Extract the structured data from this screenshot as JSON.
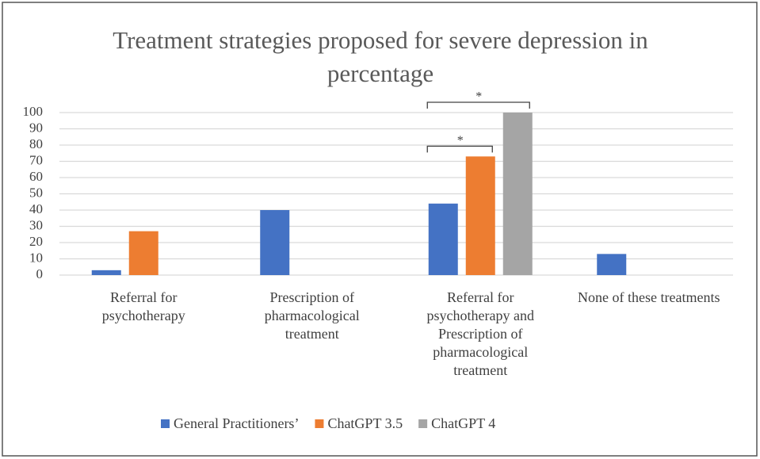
{
  "chart_data": {
    "type": "bar",
    "title": "Treatment strategies proposed for severe depression in percentage",
    "categories": [
      "Referral for psychotherapy",
      "Prescription of pharmacological treatment",
      "Referral for psychotherapy and Prescription of pharmacological treatment",
      "None of these treatments"
    ],
    "series": [
      {
        "name": "General Practitioners’",
        "color": "#4472c4",
        "values": [
          3,
          40,
          44,
          13
        ]
      },
      {
        "name": "ChatGPT 3.5",
        "color": "#ed7d31",
        "values": [
          27,
          0,
          73,
          0
        ]
      },
      {
        "name": "ChatGPT 4",
        "color": "#a5a5a5",
        "values": [
          0,
          0,
          100,
          0
        ]
      }
    ],
    "annotations": [
      "*",
      "*"
    ],
    "ylim": [
      0,
      100
    ],
    "yticks": [
      0,
      10,
      20,
      30,
      40,
      50,
      60,
      70,
      80,
      90,
      100
    ],
    "grid": true
  }
}
